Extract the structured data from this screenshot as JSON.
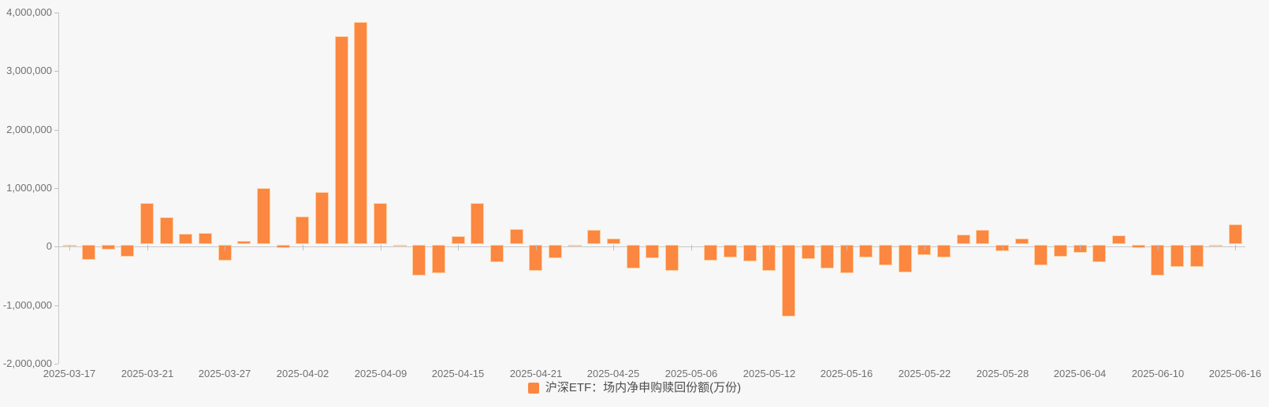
{
  "chart_data": {
    "type": "bar",
    "title": "",
    "xlabel": "",
    "ylabel": "",
    "ylim": [
      -2000000,
      4000000
    ],
    "grid": false,
    "legend_position": "bottom",
    "legend": {
      "label": "沪深ETF：场内净申购赎回份额(万份)"
    },
    "y_ticks": [
      4000000,
      3000000,
      2000000,
      1000000,
      0,
      -1000000,
      -2000000
    ],
    "y_tick_labels": [
      "4,000,000",
      "3,000,000",
      "2,000,000",
      "1,000,000",
      "0",
      "-1,000,000",
      "-2,000,000"
    ],
    "x_tick_every": 4,
    "x_tick_labels": [
      "2025-03-17",
      "2025-03-21",
      "2025-03-27",
      "2025-04-02",
      "2025-04-09",
      "2025-04-15",
      "2025-04-21",
      "2025-04-25",
      "2025-05-06",
      "2025-05-12",
      "2025-05-16",
      "2025-05-22",
      "2025-05-28",
      "2025-06-04",
      "2025-06-10",
      "2025-06-16"
    ],
    "x": [
      "2025-03-17",
      "2025-03-18",
      "2025-03-19",
      "2025-03-20",
      "2025-03-21",
      "2025-03-24",
      "2025-03-25",
      "2025-03-26",
      "2025-03-27",
      "2025-03-28",
      "2025-03-31",
      "2025-04-01",
      "2025-04-02",
      "2025-04-03",
      "2025-04-07",
      "2025-04-08",
      "2025-04-09",
      "2025-04-10",
      "2025-04-11",
      "2025-04-14",
      "2025-04-15",
      "2025-04-16",
      "2025-04-17",
      "2025-04-18",
      "2025-04-21",
      "2025-04-22",
      "2025-04-23",
      "2025-04-24",
      "2025-04-25",
      "2025-04-28",
      "2025-04-29",
      "2025-04-30",
      "2025-05-06",
      "2025-05-07",
      "2025-05-08",
      "2025-05-09",
      "2025-05-12",
      "2025-05-13",
      "2025-05-14",
      "2025-05-15",
      "2025-05-16",
      "2025-05-19",
      "2025-05-20",
      "2025-05-21",
      "2025-05-22",
      "2025-05-23",
      "2025-05-26",
      "2025-05-27",
      "2025-05-28",
      "2025-05-29",
      "2025-05-30",
      "2025-06-03",
      "2025-06-04",
      "2025-06-05",
      "2025-06-06",
      "2025-06-09",
      "2025-06-10",
      "2025-06-11",
      "2025-06-12",
      "2025-06-13",
      "2025-06-16"
    ],
    "series": [
      {
        "name": "沪深ETF：场内净申购赎回份额(万份)",
        "values": [
          -30000,
          -260000,
          -80000,
          -200000,
          700000,
          460000,
          170000,
          190000,
          -270000,
          60000,
          950000,
          -60000,
          470000,
          890000,
          3550000,
          3800000,
          700000,
          -30000,
          -520000,
          -480000,
          130000,
          700000,
          -300000,
          250000,
          -440000,
          -230000,
          -20000,
          240000,
          90000,
          -400000,
          -230000,
          -450000,
          0,
          -270000,
          -210000,
          -280000,
          -450000,
          -1230000,
          -240000,
          -400000,
          -480000,
          -220000,
          -350000,
          -470000,
          -180000,
          -220000,
          160000,
          240000,
          -110000,
          100000,
          -350000,
          -200000,
          -130000,
          -290000,
          150000,
          -60000,
          -530000,
          -370000,
          -370000,
          -20000,
          340000
        ]
      }
    ],
    "colors": {
      "bar": "#fb8741",
      "bar_border": "#fecf9e",
      "axis": "#c8c8c8",
      "tick": "#bfbfbf",
      "axis_label": "#707070",
      "legend_text": "#4d4d4d",
      "background": "#f7f7f8"
    }
  }
}
